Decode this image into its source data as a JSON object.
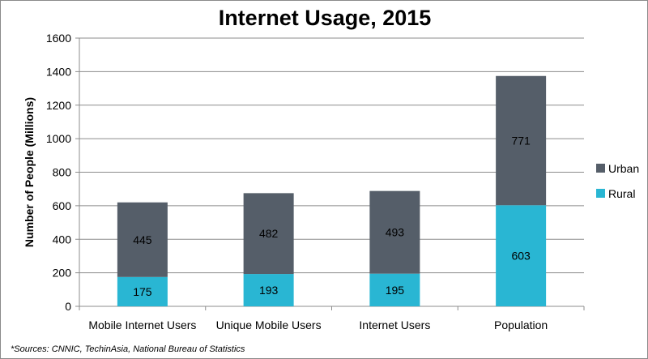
{
  "chart_data": {
    "type": "bar",
    "stacked": true,
    "title": "Internet Usage, 2015",
    "xlabel": "",
    "ylabel": "Number of People (Millions)",
    "ylim": [
      0,
      1600
    ],
    "yticks": [
      0,
      200,
      400,
      600,
      800,
      1000,
      1200,
      1400,
      1600
    ],
    "grid": true,
    "legend_position": "right",
    "categories": [
      "Mobile Internet Users",
      "Unique Mobile Users",
      "Internet Users",
      "Population"
    ],
    "series": [
      {
        "name": "Rural",
        "color": "#29b6d3",
        "values": [
          175,
          193,
          195,
          603
        ]
      },
      {
        "name": "Urban",
        "color": "#555e69",
        "values": [
          445,
          482,
          493,
          771
        ]
      }
    ],
    "footnote": "*Sources: CNNIC, TechinAsia, National Bureau of Statistics"
  }
}
